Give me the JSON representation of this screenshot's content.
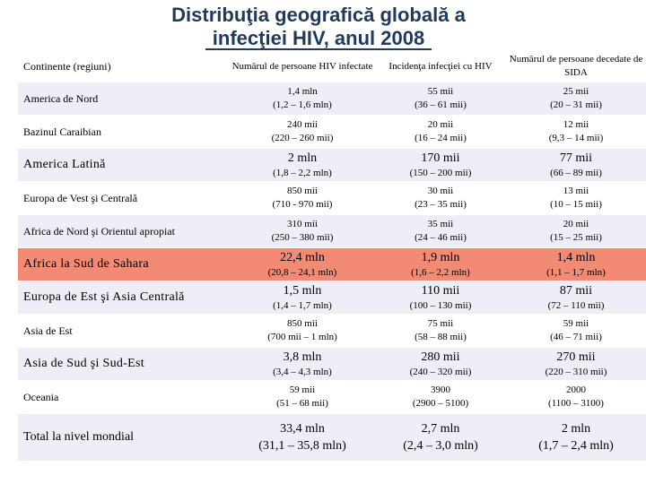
{
  "title": {
    "line1": "Distribuţia geografică globală a",
    "line2": "infecţiei HIV, anul 2008"
  },
  "headers": {
    "region": "Continente (regiuni)",
    "infected": "Numărul de persoane HIV infectate",
    "incidence": "Incidenţa infecţiei cu HIV",
    "deaths": "Numărul de persoane decedate de SIDA"
  },
  "rows": [
    {
      "region": "America de Nord",
      "infected": "1,4 mln",
      "infected_range": "(1,2 – 1,6 mln)",
      "incidence": "55 mii",
      "incidence_range": "(36 – 61 mii)",
      "deaths": "25 mii",
      "deaths_range": "(20 – 31 mii)"
    },
    {
      "region": "Bazinul Caraibian",
      "infected": "240 mii",
      "infected_range": "(220 – 260 mii)",
      "incidence": "20 mii",
      "incidence_range": "(16 – 24 mii)",
      "deaths": "12 mii",
      "deaths_range": "(9,3 – 14 mii)"
    },
    {
      "region": "America Latină",
      "infected": "2 mln",
      "infected_range": "(1,8 – 2,2 mln)",
      "incidence": "170 mii",
      "incidence_range": "(150 – 200 mii)",
      "deaths": "77 mii",
      "deaths_range": "(66 – 89 mii)"
    },
    {
      "region": "Europa de Vest şi Centrală",
      "infected": "850 mii",
      "infected_range": "(710 - 970 mii)",
      "incidence": "30 mii",
      "incidence_range": "(23 – 35 mii)",
      "deaths": "13 mii",
      "deaths_range": "(10 – 15 mii)"
    },
    {
      "region": "Africa de Nord şi Orientul apropiat",
      "infected": "310 mii",
      "infected_range": "(250 – 380 mii)",
      "incidence": "35 mii",
      "incidence_range": "(24 – 46 mii)",
      "deaths": "20 mii",
      "deaths_range": "(15 – 25 mii)"
    },
    {
      "region": "Africa la Sud de Sahara",
      "infected": "22,4 mln",
      "infected_range": "(20,8 – 24,1 mln)",
      "incidence": "1,9 mln",
      "incidence_range": "(1,6 – 2,2 mln)",
      "deaths": "1,4 mln",
      "deaths_range": "(1,1 – 1,7 mln)"
    },
    {
      "region": "Europa de Est şi Asia Centrală",
      "infected": "1,5 mln",
      "infected_range": "(1,4 – 1,7 mln)",
      "incidence": "110 mii",
      "incidence_range": "(100 – 130 mii)",
      "deaths": "87 mii",
      "deaths_range": "(72 – 110 mii)"
    },
    {
      "region": "Asia de Est",
      "infected": "850 mii",
      "infected_range": "(700 mii – 1 mln)",
      "incidence": "75 mii",
      "incidence_range": "(58 – 88 mii)",
      "deaths": "59 mii",
      "deaths_range": "(46 – 71 mii)"
    },
    {
      "region": "Asia de Sud şi Sud-Est",
      "infected": "3,8 mln",
      "infected_range": "(3,4 – 4,3 mln)",
      "incidence": "280 mii",
      "incidence_range": "(240 – 320 mii)",
      "deaths": "270 mii",
      "deaths_range": "(220 – 310 mii)"
    },
    {
      "region": "Oceania",
      "infected": "59 mii",
      "infected_range": "(51 – 68 mii)",
      "incidence": "3900",
      "incidence_range": "(2900 – 5100)",
      "deaths": "2000",
      "deaths_range": "(1100 – 3100)"
    },
    {
      "region": "Total la nivel mondial",
      "infected": "33,4 mln",
      "infected_range": "(31,1 – 35,8 mln)",
      "incidence": "2,7 mln",
      "incidence_range": "(2,4 – 3,0 mln)",
      "deaths": "2 mln",
      "deaths_range": "(1,7 – 2,4 mln)"
    }
  ],
  "colors": {
    "title": "#1f3a5e",
    "row_alt": "#eeeef7",
    "highlight": "#f28a74"
  }
}
